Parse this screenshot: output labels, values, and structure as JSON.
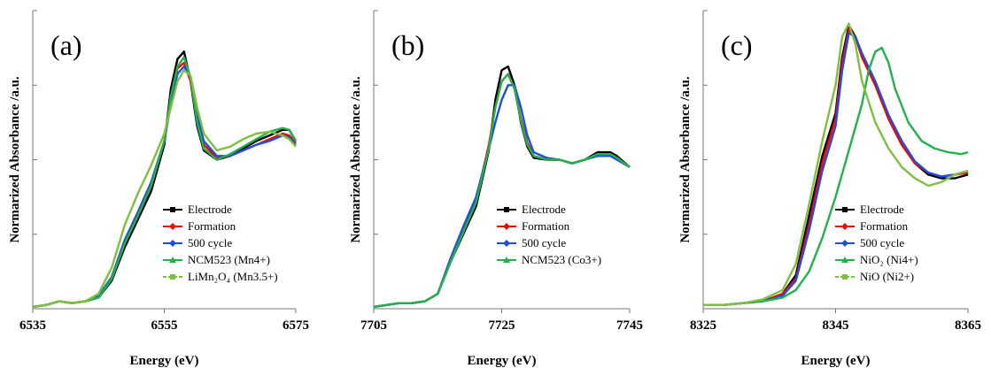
{
  "chart_data": [
    {
      "type": "line",
      "panel_label": "(a)",
      "xlabel": "Energy (eV)",
      "ylabel": "Normarized Absorbance /a.u.",
      "xlim": [
        6535,
        6575
      ],
      "xticks": [
        "6535",
        "6555",
        "6575"
      ],
      "ylim": [
        0,
        1.6
      ],
      "legend_position": "bottom-right",
      "grid": false,
      "series": [
        {
          "name": "Electrode",
          "color": "#000000",
          "x": [
            6535,
            6537,
            6539,
            6541,
            6543,
            6545,
            6547,
            6549,
            6551,
            6553,
            6555,
            6556,
            6557,
            6558,
            6559,
            6560,
            6561,
            6563,
            6565,
            6567,
            6569,
            6571,
            6573,
            6574,
            6575
          ],
          "y": [
            0.01,
            0.02,
            0.04,
            0.03,
            0.04,
            0.06,
            0.15,
            0.33,
            0.48,
            0.63,
            0.88,
            1.18,
            1.34,
            1.38,
            1.22,
            0.98,
            0.85,
            0.8,
            0.82,
            0.86,
            0.9,
            0.93,
            0.96,
            0.96,
            0.9
          ]
        },
        {
          "name": "Formation",
          "color": "#ff0000",
          "x": [
            6535,
            6537,
            6539,
            6541,
            6543,
            6545,
            6547,
            6549,
            6551,
            6553,
            6555,
            6556,
            6557,
            6558,
            6559,
            6560,
            6561,
            6563,
            6565,
            6567,
            6569,
            6571,
            6573,
            6574,
            6575
          ],
          "y": [
            0.01,
            0.02,
            0.04,
            0.03,
            0.04,
            0.07,
            0.16,
            0.35,
            0.5,
            0.66,
            0.9,
            1.12,
            1.29,
            1.32,
            1.22,
            1.02,
            0.88,
            0.81,
            0.82,
            0.85,
            0.88,
            0.91,
            0.94,
            0.93,
            0.89
          ]
        },
        {
          "name": "500 cycle",
          "color": "#1f4fd8",
          "x": [
            6535,
            6537,
            6539,
            6541,
            6543,
            6545,
            6547,
            6549,
            6551,
            6553,
            6555,
            6556,
            6557,
            6558,
            6559,
            6560,
            6561,
            6563,
            6565,
            6567,
            6569,
            6571,
            6573,
            6574,
            6575
          ],
          "y": [
            0.01,
            0.02,
            0.04,
            0.03,
            0.04,
            0.07,
            0.17,
            0.37,
            0.52,
            0.68,
            0.9,
            1.1,
            1.26,
            1.3,
            1.24,
            1.04,
            0.9,
            0.82,
            0.82,
            0.85,
            0.88,
            0.9,
            0.93,
            0.92,
            0.88
          ]
        },
        {
          "name": "NCM523 (Mn4+)",
          "color": "#22b14c",
          "x": [
            6535,
            6537,
            6539,
            6541,
            6543,
            6545,
            6547,
            6549,
            6551,
            6553,
            6555,
            6556,
            6557,
            6558,
            6559,
            6560,
            6561,
            6563,
            6565,
            6567,
            6569,
            6571,
            6573,
            6574,
            6575
          ],
          "y": [
            0.01,
            0.02,
            0.04,
            0.03,
            0.04,
            0.06,
            0.16,
            0.35,
            0.5,
            0.66,
            0.9,
            1.14,
            1.3,
            1.35,
            1.24,
            1.0,
            0.86,
            0.8,
            0.83,
            0.87,
            0.91,
            0.95,
            0.97,
            0.96,
            0.9
          ]
        },
        {
          "name": "LiMn₂O₄ (Mn3.5+)",
          "color": "#7fbf3f",
          "x": [
            6535,
            6537,
            6539,
            6541,
            6543,
            6545,
            6547,
            6549,
            6551,
            6553,
            6555,
            6556,
            6557,
            6558,
            6559,
            6560,
            6561,
            6563,
            6565,
            6567,
            6569,
            6571,
            6573,
            6574,
            6575
          ],
          "y": [
            0.01,
            0.02,
            0.04,
            0.03,
            0.04,
            0.08,
            0.22,
            0.45,
            0.62,
            0.77,
            0.94,
            1.08,
            1.22,
            1.28,
            1.25,
            1.08,
            0.94,
            0.85,
            0.87,
            0.91,
            0.94,
            0.95,
            0.93,
            0.91,
            0.87
          ]
        }
      ]
    },
    {
      "type": "line",
      "panel_label": "(b)",
      "xlabel": "Energy (eV)",
      "ylabel": "Normarized Absorbance /a.u.",
      "xlim": [
        7705,
        7745
      ],
      "xticks": [
        "7705",
        "7725",
        "7745"
      ],
      "ylim": [
        0,
        1.6
      ],
      "legend_position": "bottom-right",
      "grid": false,
      "series": [
        {
          "name": "Electrode",
          "color": "#000000",
          "x": [
            7705,
            7707,
            7709,
            7711,
            7713,
            7715,
            7717,
            7719,
            7721,
            7723,
            7724,
            7725,
            7726,
            7727,
            7728,
            7729,
            7730,
            7732,
            7734,
            7736,
            7738,
            7740,
            7742,
            7743,
            7745
          ],
          "y": [
            0.01,
            0.02,
            0.03,
            0.03,
            0.04,
            0.08,
            0.25,
            0.4,
            0.55,
            0.85,
            1.12,
            1.28,
            1.3,
            1.2,
            1.0,
            0.87,
            0.81,
            0.8,
            0.8,
            0.78,
            0.8,
            0.84,
            0.84,
            0.82,
            0.76
          ]
        },
        {
          "name": "Formation",
          "color": "#ff0000",
          "x": [
            7705,
            7707,
            7709,
            7711,
            7713,
            7715,
            7717,
            7719,
            7721,
            7723,
            7724,
            7725,
            7726,
            7727,
            7728,
            7729,
            7730,
            7732,
            7734,
            7736,
            7738,
            7740,
            7742,
            7743,
            7745
          ],
          "y": [
            0.01,
            0.02,
            0.03,
            0.03,
            0.04,
            0.08,
            0.26,
            0.42,
            0.58,
            0.88,
            1.08,
            1.22,
            1.26,
            1.18,
            1.02,
            0.89,
            0.82,
            0.8,
            0.8,
            0.78,
            0.8,
            0.83,
            0.83,
            0.81,
            0.76
          ]
        },
        {
          "name": "500 cycle",
          "color": "#1f4fd8",
          "x": [
            7705,
            7707,
            7709,
            7711,
            7713,
            7715,
            7717,
            7719,
            7721,
            7723,
            7724,
            7725,
            7726,
            7727,
            7728,
            7729,
            7730,
            7732,
            7734,
            7736,
            7738,
            7740,
            7742,
            7743,
            7745
          ],
          "y": [
            0.01,
            0.02,
            0.03,
            0.03,
            0.04,
            0.08,
            0.27,
            0.44,
            0.6,
            0.86,
            1.0,
            1.12,
            1.2,
            1.2,
            1.08,
            0.93,
            0.84,
            0.81,
            0.8,
            0.78,
            0.8,
            0.82,
            0.82,
            0.8,
            0.76
          ]
        },
        {
          "name": "NCM523 (Co3+)",
          "color": "#22b14c",
          "x": [
            7705,
            7707,
            7709,
            7711,
            7713,
            7715,
            7717,
            7719,
            7721,
            7723,
            7724,
            7725,
            7726,
            7727,
            7728,
            7729,
            7730,
            7732,
            7734,
            7736,
            7738,
            7740,
            7742,
            7743,
            7745
          ],
          "y": [
            0.01,
            0.02,
            0.03,
            0.03,
            0.04,
            0.08,
            0.25,
            0.41,
            0.57,
            0.86,
            1.08,
            1.22,
            1.26,
            1.18,
            1.01,
            0.88,
            0.82,
            0.8,
            0.8,
            0.78,
            0.8,
            0.83,
            0.83,
            0.81,
            0.76
          ]
        }
      ]
    },
    {
      "type": "line",
      "panel_label": "(c)",
      "xlabel": "Energy (eV)",
      "ylabel": "Normarized Absorbance /a.u.",
      "xlim": [
        8325,
        8365
      ],
      "xticks": [
        "8325",
        "8345",
        "8365"
      ],
      "ylim": [
        0,
        1.6
      ],
      "legend_position": "bottom-right",
      "grid": false,
      "series": [
        {
          "name": "Electrode",
          "color": "#000000",
          "x": [
            8325,
            8328,
            8331,
            8334,
            8337,
            8339,
            8341,
            8343,
            8345,
            8346,
            8347,
            8348,
            8349,
            8351,
            8353,
            8355,
            8357,
            8359,
            8361,
            8363,
            8365
          ],
          "y": [
            0.02,
            0.02,
            0.03,
            0.04,
            0.08,
            0.18,
            0.5,
            0.82,
            1.05,
            1.35,
            1.52,
            1.46,
            1.35,
            1.2,
            1.02,
            0.88,
            0.78,
            0.72,
            0.7,
            0.7,
            0.72
          ]
        },
        {
          "name": "Formation",
          "color": "#ff0000",
          "x": [
            8325,
            8328,
            8331,
            8334,
            8337,
            8339,
            8341,
            8343,
            8345,
            8346,
            8347,
            8348,
            8349,
            8351,
            8353,
            8355,
            8357,
            8359,
            8361,
            8363,
            8365
          ],
          "y": [
            0.02,
            0.02,
            0.03,
            0.04,
            0.08,
            0.16,
            0.45,
            0.78,
            1.02,
            1.32,
            1.5,
            1.46,
            1.35,
            1.2,
            1.02,
            0.88,
            0.78,
            0.73,
            0.71,
            0.72,
            0.73
          ]
        },
        {
          "name": "500 cycle",
          "color": "#1f4fd8",
          "x": [
            8325,
            8328,
            8331,
            8334,
            8337,
            8339,
            8341,
            8343,
            8345,
            8346,
            8347,
            8348,
            8349,
            8351,
            8353,
            8355,
            8357,
            8359,
            8361,
            8363,
            8365
          ],
          "y": [
            0.02,
            0.02,
            0.03,
            0.04,
            0.07,
            0.15,
            0.42,
            0.74,
            0.98,
            1.28,
            1.48,
            1.46,
            1.37,
            1.22,
            1.04,
            0.9,
            0.79,
            0.73,
            0.71,
            0.72,
            0.74
          ]
        },
        {
          "name": "NiO₂ (Ni4+)",
          "color": "#22b14c",
          "x": [
            8325,
            8328,
            8331,
            8334,
            8337,
            8339,
            8341,
            8343,
            8345,
            8347,
            8349,
            8350,
            8351,
            8352,
            8353,
            8354,
            8356,
            8358,
            8360,
            8362,
            8364,
            8365
          ],
          "y": [
            0.02,
            0.02,
            0.03,
            0.04,
            0.06,
            0.1,
            0.2,
            0.38,
            0.6,
            0.85,
            1.1,
            1.28,
            1.38,
            1.4,
            1.32,
            1.18,
            1.0,
            0.9,
            0.86,
            0.84,
            0.83,
            0.84
          ]
        },
        {
          "name": "NiO (Ni2+)",
          "color": "#7fbf3f",
          "x": [
            8325,
            8328,
            8331,
            8334,
            8337,
            8339,
            8341,
            8343,
            8345,
            8346,
            8347,
            8348,
            8349,
            8351,
            8353,
            8355,
            8357,
            8359,
            8361,
            8363,
            8365
          ],
          "y": [
            0.02,
            0.02,
            0.03,
            0.05,
            0.1,
            0.24,
            0.56,
            0.9,
            1.2,
            1.46,
            1.53,
            1.42,
            1.22,
            1.0,
            0.86,
            0.76,
            0.7,
            0.66,
            0.68,
            0.72,
            0.74
          ]
        }
      ]
    }
  ]
}
